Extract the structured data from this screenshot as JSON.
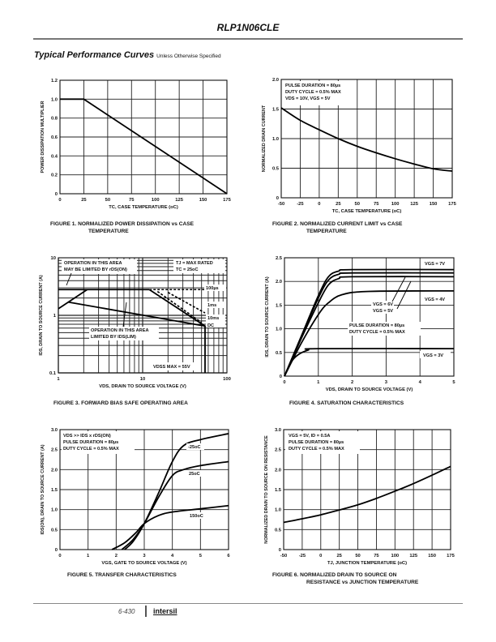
{
  "header": {
    "title": "RLP1N06CLE"
  },
  "section": {
    "title": "Typical Performance Curves",
    "subtitle": "Unless Otherwise Specified"
  },
  "footer": {
    "page": "6-430",
    "logo": "intersil"
  },
  "chart_data": [
    {
      "id": "fig1",
      "type": "line",
      "caption_line1": "FIGURE 1.  NORMALIZED POWER DISSIPATION vs CASE",
      "caption_line2": "TEMPERATURE",
      "xlabel": "TC, CASE TEMPERATURE (oC)",
      "ylabel": "POWER DISSIPATION MULTIPLIER",
      "xlim": [
        0,
        175
      ],
      "ylim": [
        0,
        1.2
      ],
      "xticks": [
        0,
        25,
        50,
        75,
        100,
        125,
        150,
        175
      ],
      "xtick_labels": [
        "0",
        "25",
        "50",
        "75",
        "100",
        "125",
        "150",
        "175"
      ],
      "yticks": [
        0,
        0.2,
        0.4,
        0.6,
        0.8,
        1.0,
        1.2
      ],
      "ytick_labels": [
        "0",
        "0.2",
        "0.4",
        "0.6",
        "0.8",
        "1.0",
        "1.2"
      ],
      "series": [
        {
          "name": "multiplier",
          "x": [
            0,
            25,
            175
          ],
          "y": [
            1.0,
            1.0,
            0
          ]
        }
      ],
      "annotations": []
    },
    {
      "id": "fig2",
      "type": "line",
      "caption_line1": "FIGURE 2.  NORMALIZED CURRENT LIMIT vs CASE",
      "caption_line2": "TEMPERATURE",
      "xlabel": "TC, CASE TEMPERATURE (oC)",
      "ylabel": "NORMALIZED DRAIN CURRENT",
      "xlim": [
        -50,
        175
      ],
      "ylim": [
        0,
        2.0
      ],
      "xticks": [
        -50,
        -25,
        0,
        25,
        50,
        75,
        100,
        125,
        150,
        175
      ],
      "xtick_labels": [
        "-50",
        "-25",
        "0",
        "25",
        "50",
        "75",
        "100",
        "125",
        "150",
        "175"
      ],
      "yticks": [
        0,
        0.5,
        1.0,
        1.5,
        2.0
      ],
      "ytick_labels": [
        "0",
        "0.5",
        "1.0",
        "1.5",
        "2.0"
      ],
      "series": [
        {
          "name": "current",
          "x": [
            -50,
            -25,
            0,
            25,
            50,
            75,
            100,
            125,
            150,
            175
          ],
          "y": [
            1.52,
            1.31,
            1.15,
            1.0,
            0.87,
            0.76,
            0.66,
            0.57,
            0.49,
            0.45
          ]
        }
      ],
      "annotations": [
        "PULSE DURATION = 80µs",
        "DUTY CYCLE = 0.5% MAX",
        "VDS = 10V, VGS = 5V"
      ]
    },
    {
      "id": "fig3",
      "type": "line",
      "caption_line1": "FIGURE 3.  FORWARD BIAS SAFE OPERATING AREA",
      "caption_line2": "",
      "xlabel": "VDS, DRAIN TO SOURCE VOLTAGE (V)",
      "ylabel": "IDS, DRAIN TO SOURCE CURRENT (A)",
      "xscale": "log",
      "yscale": "log",
      "xlim": [
        1,
        100
      ],
      "ylim": [
        0.1,
        10
      ],
      "xticks": [
        1,
        10,
        100
      ],
      "xtick_labels": [
        "1",
        "10",
        "100"
      ],
      "yticks": [
        0.1,
        1,
        10
      ],
      "ytick_labels": [
        "0.1",
        "1",
        "10"
      ],
      "series": [
        {
          "name": "rDS(ON) limit",
          "style": "solid",
          "x": [
            1,
            2.2
          ],
          "y": [
            1.3,
            2.8
          ]
        },
        {
          "name": "IDS(LIM)",
          "style": "solid",
          "x": [
            1,
            12
          ],
          "y": [
            2.8,
            2.8
          ]
        },
        {
          "name": "DC",
          "style": "solid",
          "x": [
            12,
            55,
            55
          ],
          "y": [
            2.8,
            0.65,
            0.1
          ]
        },
        {
          "name": "upper limit",
          "style": "solid",
          "x": [
            1.3,
            55
          ],
          "y": [
            1.7,
            0.65
          ]
        },
        {
          "name": "100µs",
          "style": "dashed",
          "x": [
            12,
            55
          ],
          "y": [
            2.8,
            2.8
          ]
        },
        {
          "name": "1ms",
          "style": "dashed",
          "x": [
            20,
            55
          ],
          "y": [
            2.5,
            1.1
          ]
        },
        {
          "name": "10ms",
          "style": "dashed",
          "x": [
            15,
            50
          ],
          "y": [
            2.6,
            0.75
          ]
        }
      ],
      "annotations": [
        "OPERATION IN THIS AREA",
        "MAY BE LIMITED BY rDS(ON)",
        "TJ = MAX RATED",
        "TC = 25oC",
        "100µs",
        "1ms",
        "10ms",
        "DC",
        "OPERATION IN THIS AREA",
        "LIMITED BY IDS(LIM)",
        "VDSS MAX = 55V"
      ]
    },
    {
      "id": "fig4",
      "type": "line",
      "caption_line1": "FIGURE 4.  SATURATION CHARACTERISTICS",
      "caption_line2": "",
      "xlabel": "VDS, DRAIN TO SOURCE VOLTAGE (V)",
      "ylabel": "IDS, DRAIN TO SOURCE CURRENT (A)",
      "xlim": [
        0,
        5
      ],
      "ylim": [
        0,
        2.5
      ],
      "xticks": [
        0,
        1,
        2,
        3,
        4,
        5
      ],
      "xtick_labels": [
        "0",
        "1",
        "2",
        "3",
        "4",
        "5"
      ],
      "yticks": [
        0,
        0.5,
        1.0,
        1.5,
        2.0,
        2.5
      ],
      "ytick_labels": [
        "0",
        "0.5",
        "1.0",
        "1.5",
        "2.0",
        "2.5"
      ],
      "series": [
        {
          "name": "VGS = 7V",
          "x": [
            0,
            0.5,
            1.0,
            1.3,
            1.6,
            2.0,
            5
          ],
          "y": [
            0,
            0.85,
            1.7,
            2.1,
            2.22,
            2.25,
            2.25
          ]
        },
        {
          "name": "VGS = 6V",
          "x": [
            0,
            0.5,
            1.0,
            1.3,
            1.6,
            2.0,
            5
          ],
          "y": [
            0,
            0.83,
            1.65,
            2.03,
            2.15,
            2.18,
            2.18
          ]
        },
        {
          "name": "VGS = 5V",
          "x": [
            0,
            0.5,
            1.0,
            1.3,
            1.6,
            2.0,
            5
          ],
          "y": [
            0,
            0.8,
            1.55,
            1.93,
            2.06,
            2.1,
            2.1
          ]
        },
        {
          "name": "VGS = 4V",
          "x": [
            0,
            0.5,
            1.0,
            1.3,
            1.7,
            2.5,
            5
          ],
          "y": [
            0,
            0.7,
            1.3,
            1.55,
            1.72,
            1.79,
            1.8
          ]
        },
        {
          "name": "VGS = 3V",
          "x": [
            0,
            0.2,
            0.4,
            0.7,
            1.0,
            5
          ],
          "y": [
            0,
            0.3,
            0.45,
            0.55,
            0.58,
            0.58
          ]
        }
      ],
      "annotations": [
        "VGS = 7V",
        "VGS = 6V",
        "VGS = 5V",
        "VGS = 4V",
        "VGS = 3V",
        "PULSE DURATION = 80µs",
        "DUTY CYCLE = 0.5% MAX"
      ]
    },
    {
      "id": "fig5",
      "type": "line",
      "caption_line1": "FIGURE 5.  TRANSFER CHARACTERISTICS",
      "caption_line2": "",
      "xlabel": "VGS, GATE TO SOURCE VOLTAGE (V)",
      "ylabel": "IDS(ON), DRAIN TO SOURCE CURRENT (A)",
      "xlim": [
        0,
        6
      ],
      "ylim": [
        0,
        3.0
      ],
      "xticks": [
        0,
        1,
        2,
        3,
        4,
        5,
        6
      ],
      "xtick_labels": [
        "0",
        "1",
        "2",
        "3",
        "4",
        "5",
        "6"
      ],
      "yticks": [
        0,
        0.5,
        1.0,
        1.5,
        2.0,
        2.5,
        3.0
      ],
      "ytick_labels": [
        "0",
        "0.5",
        "1.0",
        "1.5",
        "2.0",
        "2.5",
        "3.0"
      ],
      "series": [
        {
          "name": "-25oC",
          "x": [
            2.3,
            2.6,
            3.0,
            3.5,
            4.0,
            4.4,
            5.0,
            6.0
          ],
          "y": [
            0,
            0.2,
            0.65,
            1.4,
            2.2,
            2.6,
            2.75,
            2.9
          ]
        },
        {
          "name": "25oC",
          "x": [
            2.2,
            2.6,
            3.0,
            3.5,
            4.0,
            4.4,
            5.0,
            6.0
          ],
          "y": [
            0,
            0.25,
            0.65,
            1.3,
            1.85,
            2.0,
            2.1,
            2.2
          ]
        },
        {
          "name": "150oC",
          "x": [
            1.85,
            2.3,
            2.7,
            3.0,
            3.5,
            4.0,
            5.0,
            6.0
          ],
          "y": [
            0,
            0.17,
            0.42,
            0.65,
            0.85,
            0.94,
            1.02,
            1.1
          ]
        }
      ],
      "annotations": [
        "VDS >> IDS x rDS(ON)",
        "PULSE DURATION = 80µs",
        "DUTY CYCLE = 0.5% MAX",
        "-25oC",
        "25oC",
        "150oC"
      ]
    },
    {
      "id": "fig6",
      "type": "line",
      "caption_line1": "FIGURE 6.  NORMALIZED DRAIN TO SOURCE ON",
      "caption_line2": "RESISTANCE vs JUNCTION TEMPERATURE",
      "xlabel": "TJ, JUNCTION TEMPERATURE (oC)",
      "ylabel": "NORMALIZED DRAIN TO SOURCE ON RESISTANCE",
      "xlim": [
        -50,
        175
      ],
      "ylim": [
        0,
        3.0
      ],
      "xticks": [
        -50,
        -25,
        0,
        25,
        50,
        75,
        100,
        125,
        150,
        175
      ],
      "xtick_labels": [
        "-50",
        "-25",
        "0",
        "25",
        "50",
        "75",
        "100",
        "125",
        "150",
        "175"
      ],
      "yticks": [
        0,
        0.5,
        1.0,
        1.5,
        2.0,
        2.5,
        3.0
      ],
      "ytick_labels": [
        "0",
        "0.5",
        "1.0",
        "1.5",
        "2.0",
        "2.5",
        "3.0"
      ],
      "series": [
        {
          "name": "rDS(ON)",
          "x": [
            -50,
            -25,
            0,
            25,
            50,
            75,
            100,
            125,
            150,
            175
          ],
          "y": [
            0.68,
            0.77,
            0.87,
            0.99,
            1.12,
            1.28,
            1.46,
            1.65,
            1.86,
            2.08
          ]
        }
      ],
      "annotations": [
        "VGS = 5V, ID = 0.5A",
        "PULSE DURATION = 80µs",
        "DUTY CYCLE = 0.5% MAX"
      ]
    }
  ]
}
